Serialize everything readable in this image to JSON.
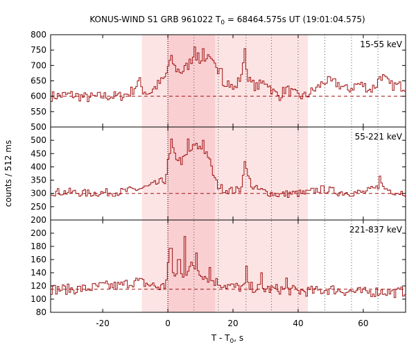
{
  "chart_data": {
    "type": "line",
    "title_main": "KONUS-WIND S1 GRB 961022 T",
    "title_sub": "0",
    "title_rest": " = 68464.575s UT (19:01:04.575)",
    "xlabel_main": "T - T",
    "xlabel_sub": "0",
    "xlabel_rest": ", s",
    "ylabel": "counts / 512 ms",
    "xlim": [
      -36,
      73
    ],
    "xticks": [
      -20,
      0,
      20,
      40,
      60
    ],
    "colors": {
      "curve": "#a01010",
      "background_dash": "#a01010",
      "shade_outer": "#fde4e4",
      "shade_inner": "#f9cfd2",
      "marker_line": "#555555"
    },
    "shaded_intervals": [
      {
        "x0": -8,
        "x1": 43,
        "level": "outer"
      },
      {
        "x0": 0,
        "x1": 14.5,
        "level": "inner"
      }
    ],
    "solid_marker": 0,
    "dotted_markers": [
      8,
      15.5,
      24,
      31.8,
      40,
      48.2,
      56.4,
      64.5
    ],
    "panels": [
      {
        "label": "15-55 keV",
        "ylim": [
          500,
          800
        ],
        "yticks": [
          500,
          550,
          600,
          650,
          700,
          750,
          800
        ],
        "background": 600,
        "anchors": [
          [
            -36,
            600
          ],
          [
            -30,
            605
          ],
          [
            -25,
            595
          ],
          [
            -20,
            600
          ],
          [
            -15,
            600
          ],
          [
            -12,
            610
          ],
          [
            -11,
            620
          ],
          [
            -10,
            635
          ],
          [
            -9,
            650
          ],
          [
            -8,
            620
          ],
          [
            -6,
            610
          ],
          [
            -3,
            640
          ],
          [
            -1,
            660
          ],
          [
            0,
            705
          ],
          [
            1,
            720
          ],
          [
            2,
            690
          ],
          [
            4,
            680
          ],
          [
            6,
            700
          ],
          [
            8,
            740
          ],
          [
            10,
            710
          ],
          [
            12,
            720
          ],
          [
            14,
            700
          ],
          [
            16,
            640
          ],
          [
            18,
            650
          ],
          [
            20,
            620
          ],
          [
            22,
            660
          ],
          [
            23.5,
            720
          ],
          [
            24,
            680
          ],
          [
            25,
            645
          ],
          [
            27,
            630
          ],
          [
            30,
            650
          ],
          [
            32,
            615
          ],
          [
            34,
            600
          ],
          [
            36,
            625
          ],
          [
            38,
            610
          ],
          [
            40,
            600
          ],
          [
            42,
            600
          ],
          [
            46,
            630
          ],
          [
            48,
            650
          ],
          [
            50,
            645
          ],
          [
            52,
            640
          ],
          [
            55,
            620
          ],
          [
            58,
            640
          ],
          [
            60,
            635
          ],
          [
            62,
            620
          ],
          [
            64,
            640
          ],
          [
            65,
            670
          ],
          [
            66,
            660
          ],
          [
            68,
            635
          ],
          [
            70,
            635
          ],
          [
            73,
            630
          ]
        ],
        "spikes": [
          [
            8,
            760
          ],
          [
            10.5,
            755
          ],
          [
            23.5,
            755
          ],
          [
            16,
            690
          ],
          [
            12,
            735
          ]
        ],
        "noise": 17
      },
      {
        "label": "55-221 keV",
        "ylim": [
          200,
          550
        ],
        "yticks": [
          200,
          250,
          300,
          350,
          400,
          450,
          500
        ],
        "background": 300,
        "anchors": [
          [
            -36,
            305
          ],
          [
            -30,
            305
          ],
          [
            -25,
            300
          ],
          [
            -20,
            303
          ],
          [
            -15,
            305
          ],
          [
            -10,
            315
          ],
          [
            -8,
            320
          ],
          [
            -6,
            325
          ],
          [
            -3,
            340
          ],
          [
            -1,
            350
          ],
          [
            0,
            430
          ],
          [
            1,
            470
          ],
          [
            2,
            440
          ],
          [
            4,
            420
          ],
          [
            6,
            450
          ],
          [
            8,
            480
          ],
          [
            10,
            470
          ],
          [
            12,
            450
          ],
          [
            13,
            400
          ],
          [
            14,
            360
          ],
          [
            15,
            330
          ],
          [
            17,
            315
          ],
          [
            20,
            310
          ],
          [
            22,
            315
          ],
          [
            23.5,
            400
          ],
          [
            24.5,
            360
          ],
          [
            26,
            320
          ],
          [
            30,
            305
          ],
          [
            34,
            295
          ],
          [
            38,
            300
          ],
          [
            40,
            300
          ],
          [
            42,
            300
          ],
          [
            46,
            315
          ],
          [
            48,
            315
          ],
          [
            52,
            305
          ],
          [
            56,
            303
          ],
          [
            60,
            303
          ],
          [
            64,
            320
          ],
          [
            65,
            340
          ],
          [
            66,
            320
          ],
          [
            70,
            305
          ],
          [
            73,
            303
          ]
        ],
        "spikes": [
          [
            1,
            505
          ],
          [
            6,
            505
          ],
          [
            10.5,
            500
          ],
          [
            23.5,
            420
          ],
          [
            65,
            365
          ]
        ],
        "noise": 15
      },
      {
        "label": "221-837 keV",
        "ylim": [
          80,
          220
        ],
        "yticks": [
          80,
          100,
          120,
          140,
          160,
          180,
          200
        ],
        "background": 115,
        "anchors": [
          [
            -36,
            115
          ],
          [
            -30,
            115
          ],
          [
            -25,
            116
          ],
          [
            -20,
            120
          ],
          [
            -15,
            120
          ],
          [
            -12,
            125
          ],
          [
            -10,
            127
          ],
          [
            -8,
            125
          ],
          [
            -6,
            122
          ],
          [
            -3,
            118
          ],
          [
            -1,
            120
          ],
          [
            0,
            160
          ],
          [
            1,
            140
          ],
          [
            3,
            135
          ],
          [
            5,
            140
          ],
          [
            7,
            150
          ],
          [
            9,
            145
          ],
          [
            11,
            135
          ],
          [
            13,
            130
          ],
          [
            15,
            125
          ],
          [
            20,
            118
          ],
          [
            25,
            118
          ],
          [
            30,
            115
          ],
          [
            35,
            115
          ],
          [
            40,
            112
          ],
          [
            45,
            112
          ],
          [
            50,
            115
          ],
          [
            55,
            112
          ],
          [
            60,
            110
          ],
          [
            65,
            112
          ],
          [
            70,
            110
          ],
          [
            73,
            112
          ]
        ],
        "spikes": [
          [
            0.6,
            177
          ],
          [
            3.2,
            160
          ],
          [
            5,
            195
          ],
          [
            8.5,
            170
          ],
          [
            12.5,
            148
          ],
          [
            24,
            150
          ],
          [
            28.5,
            140
          ],
          [
            36,
            132
          ]
        ],
        "noise": 8
      }
    ]
  }
}
